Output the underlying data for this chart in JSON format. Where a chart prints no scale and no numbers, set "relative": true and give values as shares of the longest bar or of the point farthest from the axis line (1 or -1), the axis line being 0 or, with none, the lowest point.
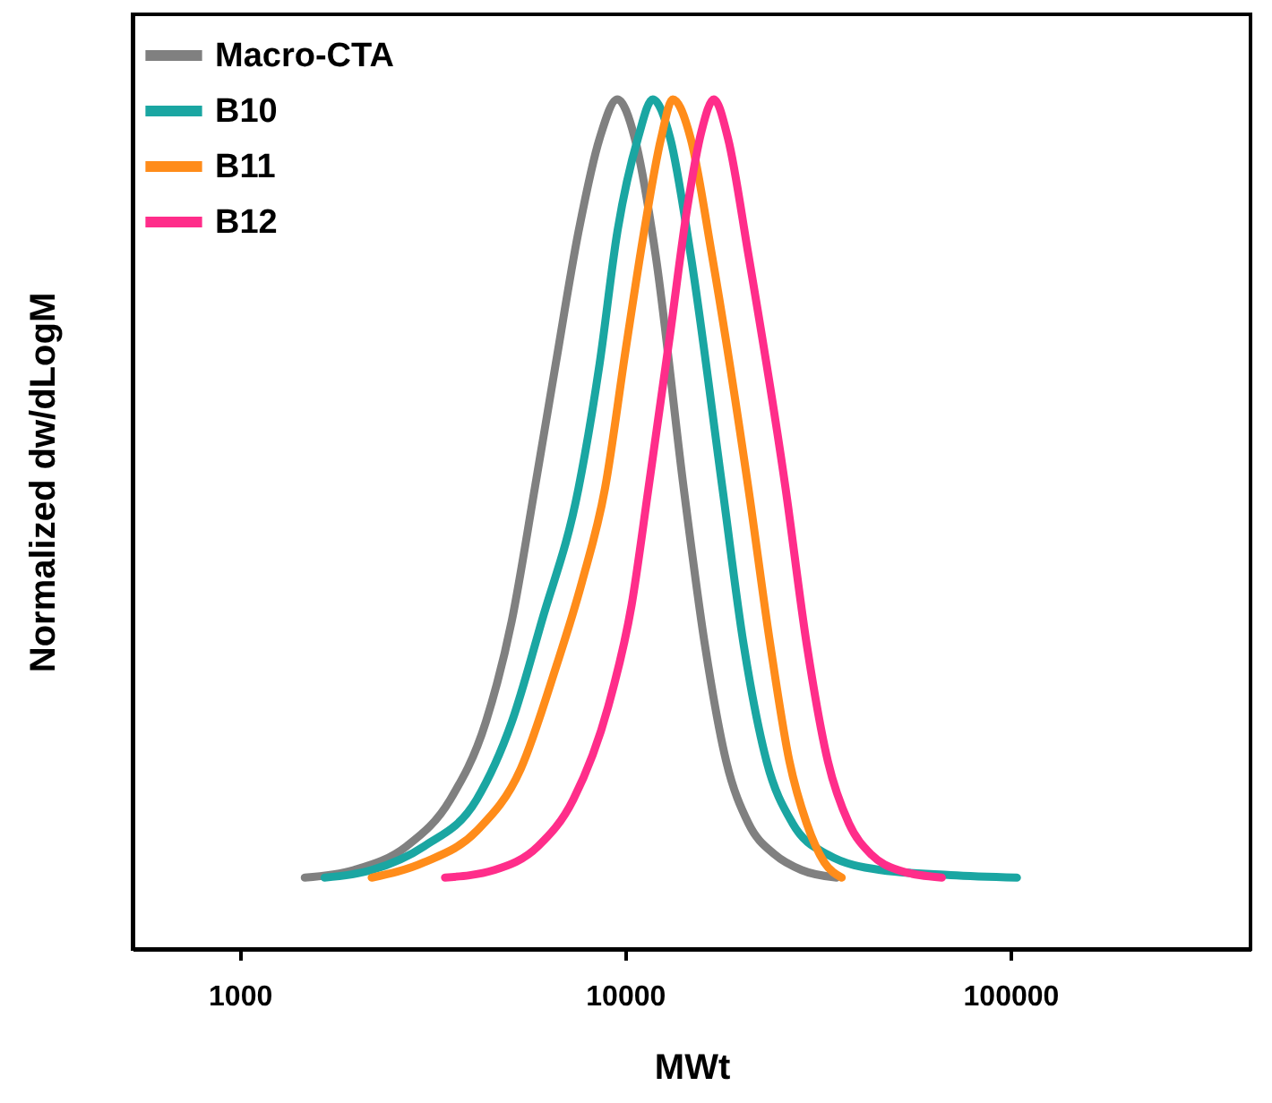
{
  "chart_data": {
    "type": "line",
    "xlabel": "MWt",
    "ylabel": "Normalized dw/dLogM",
    "log": "x",
    "relative": true,
    "xlim": [
      527,
      420000
    ],
    "xticks": [
      1000,
      10000,
      100000
    ],
    "legend": "top left",
    "grid": false,
    "marker": "none",
    "line_style": "solid",
    "series": [
      {
        "name": "Macro-CTA",
        "color": "#808080",
        "x": [
          1475,
          1980,
          2710,
          3520,
          4350,
          5080,
          5830,
          6610,
          7570,
          8590,
          9550,
          10600,
          12000,
          14200,
          16100,
          18300,
          20900,
          24500,
          28700,
          35400
        ],
        "values": [
          0.084,
          0.093,
          0.121,
          0.176,
          0.267,
          0.386,
          0.542,
          0.689,
          0.844,
          0.954,
          1.0,
          0.954,
          0.817,
          0.542,
          0.359,
          0.221,
          0.148,
          0.111,
          0.093,
          0.084
        ]
      },
      {
        "name": "B10",
        "color": "#1aa6a2",
        "x": [
          1660,
          2200,
          3010,
          4120,
          5080,
          6080,
          7570,
          8590,
          9550,
          10800,
          11800,
          13100,
          14800,
          17900,
          20300,
          23300,
          27200,
          33600,
          46000,
          70000,
          104000
        ],
        "values": [
          0.084,
          0.093,
          0.121,
          0.176,
          0.267,
          0.386,
          0.542,
          0.689,
          0.844,
          0.954,
          1.0,
          0.954,
          0.817,
          0.542,
          0.359,
          0.221,
          0.148,
          0.111,
          0.093,
          0.087,
          0.084
        ]
      },
      {
        "name": "B11",
        "color": "#ff8c1a",
        "x": [
          2200,
          3010,
          4120,
          5360,
          6610,
          7730,
          8870,
          10050,
          11200,
          12400,
          13300,
          14800,
          16800,
          20900,
          23800,
          26700,
          29600,
          32900,
          36500
        ],
        "values": [
          0.084,
          0.102,
          0.139,
          0.212,
          0.331,
          0.432,
          0.542,
          0.707,
          0.844,
          0.954,
          1.0,
          0.954,
          0.817,
          0.542,
          0.359,
          0.221,
          0.148,
          0.102,
          0.084
        ]
      },
      {
        "name": "B12",
        "color": "#ff2d8a",
        "x": [
          3410,
          4580,
          5950,
          7340,
          9050,
          10400,
          11500,
          13100,
          14500,
          15800,
          17000,
          18500,
          20900,
          26100,
          29600,
          33600,
          38100,
          43600,
          51100,
          66400
        ],
        "values": [
          0.084,
          0.093,
          0.121,
          0.176,
          0.286,
          0.405,
          0.542,
          0.725,
          0.872,
          0.963,
          1.0,
          0.954,
          0.817,
          0.542,
          0.359,
          0.221,
          0.148,
          0.111,
          0.093,
          0.084
        ]
      }
    ]
  }
}
